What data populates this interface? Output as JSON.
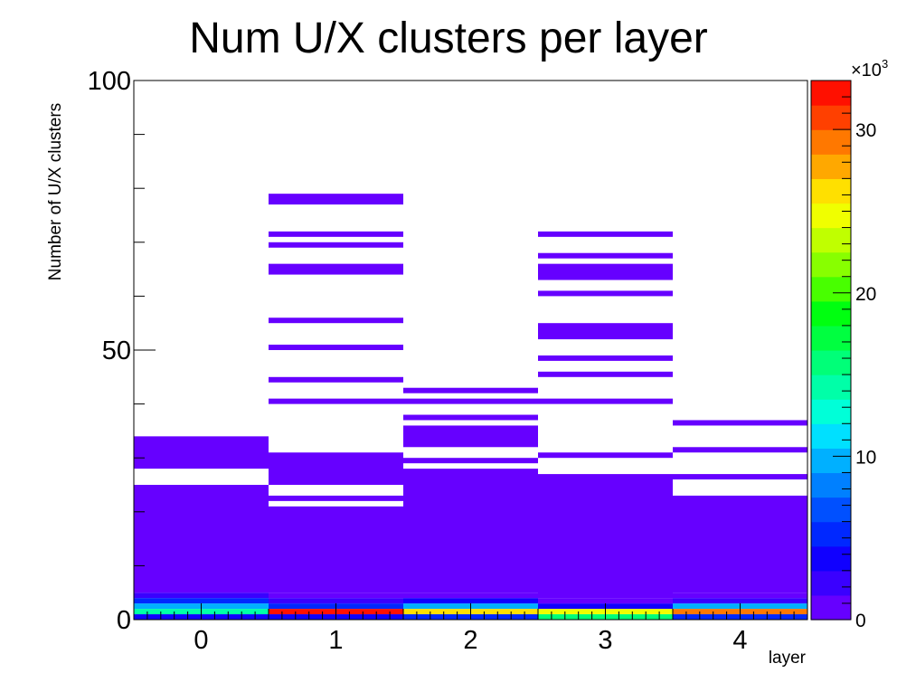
{
  "chart_data": {
    "type": "heatmap",
    "title": "Num U/X clusters per layer",
    "xlabel": "layer",
    "ylabel": "Number of U/X clusters",
    "x_categories": [
      "0",
      "1",
      "2",
      "3",
      "4"
    ],
    "xlim": [
      -0.5,
      4.5
    ],
    "ylim": [
      0,
      100
    ],
    "y_ticks": [
      "0",
      "50",
      "100"
    ],
    "colorbar": {
      "range": [
        0,
        33000
      ],
      "ticks": [
        "0",
        "10",
        "20",
        "30"
      ],
      "multiplier_base": "×10",
      "multiplier_exp": "3",
      "colors": [
        "#6600ff",
        "#3a00ff",
        "#1000ff",
        "#0028ff",
        "#0050ff",
        "#0080ff",
        "#00b0ff",
        "#00e0ff",
        "#00ffd8",
        "#00ffa8",
        "#00ff78",
        "#00ff40",
        "#00ff10",
        "#48ff00",
        "#88ff00",
        "#c0ff00",
        "#f0ff00",
        "#ffe000",
        "#ffa800",
        "#ff7800",
        "#ff4000",
        "#ff1000"
      ]
    },
    "layers": [
      {
        "layer": "0",
        "cells": [
          [
            0,
            1,
            3000
          ],
          [
            1,
            2,
            14000
          ],
          [
            2,
            3,
            10000
          ],
          [
            3,
            4,
            5500
          ],
          [
            4,
            5,
            2000
          ],
          [
            5,
            25,
            300
          ],
          [
            28,
            34,
            300
          ]
        ]
      },
      {
        "layer": "1",
        "cells": [
          [
            0,
            1,
            4000
          ],
          [
            1,
            2,
            33000
          ],
          [
            2,
            3,
            4500
          ],
          [
            3,
            4,
            2200
          ],
          [
            4,
            5,
            900
          ],
          [
            5,
            21,
            300
          ],
          [
            22,
            23,
            300
          ],
          [
            25,
            31,
            300
          ],
          [
            40,
            41,
            300
          ],
          [
            44,
            45,
            300
          ],
          [
            50,
            51,
            300
          ],
          [
            55,
            56,
            300
          ],
          [
            64,
            66,
            300
          ],
          [
            69,
            70,
            300
          ],
          [
            71,
            72,
            300
          ],
          [
            77,
            79,
            300
          ]
        ]
      },
      {
        "layer": "2",
        "cells": [
          [
            0,
            1,
            5500
          ],
          [
            1,
            2,
            26000
          ],
          [
            2,
            3,
            9000
          ],
          [
            3,
            4,
            4000
          ],
          [
            4,
            5,
            900
          ],
          [
            5,
            28,
            300
          ],
          [
            29,
            30,
            300
          ],
          [
            32,
            36,
            300
          ],
          [
            37,
            38,
            300
          ],
          [
            40,
            41,
            300
          ],
          [
            42,
            43,
            300
          ]
        ]
      },
      {
        "layer": "3",
        "cells": [
          [
            0,
            1,
            15000
          ],
          [
            1,
            2,
            25000
          ],
          [
            2,
            3,
            3000
          ],
          [
            3,
            4,
            900
          ],
          [
            4,
            27,
            300
          ],
          [
            30,
            31,
            300
          ],
          [
            40,
            41,
            300
          ],
          [
            45,
            46,
            300
          ],
          [
            48,
            49,
            300
          ],
          [
            52,
            55,
            300
          ],
          [
            60,
            61,
            300
          ],
          [
            63,
            66,
            300
          ],
          [
            67,
            68,
            300
          ],
          [
            71,
            72,
            300
          ]
        ]
      },
      {
        "layer": "4",
        "cells": [
          [
            0,
            1,
            5000
          ],
          [
            1,
            2,
            29000
          ],
          [
            2,
            3,
            9000
          ],
          [
            3,
            4,
            2600
          ],
          [
            4,
            5,
            900
          ],
          [
            5,
            23,
            300
          ],
          [
            26,
            27,
            300
          ],
          [
            31,
            32,
            300
          ],
          [
            36,
            37,
            300
          ]
        ]
      }
    ]
  }
}
